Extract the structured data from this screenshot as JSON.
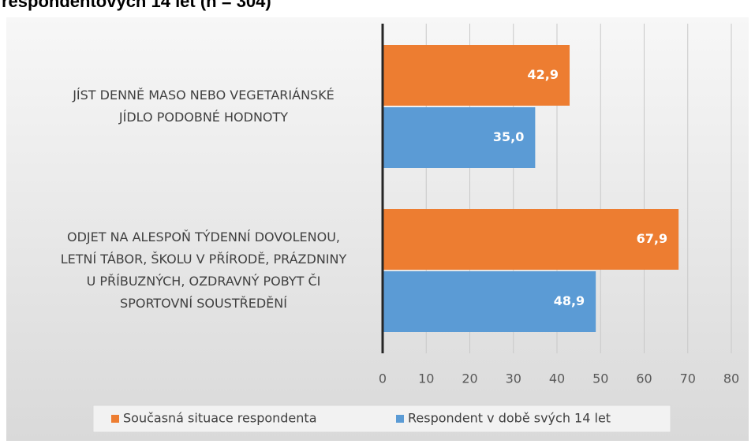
{
  "chart_data": {
    "type": "barh",
    "title": "respondentových 14 let (n = 304)",
    "categories": [
      "JÍST DENNĚ MASO NEBO VEGETARIÁNSKÉ\nJÍDLO PODOBNÉ HODNOTY",
      "ODJET NA ALESPOŇ TÝDENNÍ DOVOLENOU,\nLETNÍ TÁBOR, ŠKOLU V PŘÍRODĚ, PRÁZDNINY\nU PŘÍBUZNÝCH, OZDRAVNÝ POBYT ČI\nSPORTOVNÍ SOUSTŘEDĚNÍ"
    ],
    "series": [
      {
        "name": "Současná situace respondenta",
        "color": "#ed7d31",
        "values": [
          42.9,
          67.9
        ],
        "value_labels": [
          "42,9",
          "67,9"
        ]
      },
      {
        "name": "Respondent v době svých 14 let",
        "color": "#5b9bd5",
        "values": [
          35.0,
          48.9
        ],
        "value_labels": [
          "35,0",
          "48,9"
        ]
      }
    ],
    "xlim": [
      0,
      80
    ],
    "xticks": [
      0,
      10,
      20,
      30,
      40,
      50,
      60,
      70,
      80
    ],
    "grid": true,
    "legend": "bottom"
  }
}
